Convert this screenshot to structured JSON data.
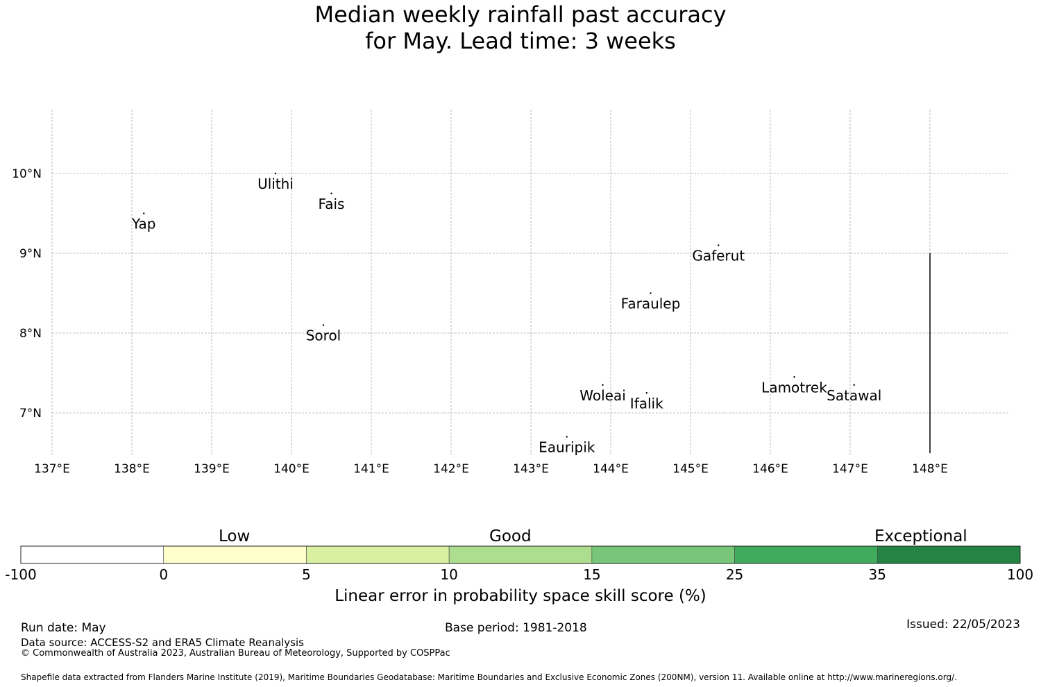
{
  "title": {
    "line1": "Median weekly rainfall past accuracy",
    "line2": "for May. Lead time: 3 weeks"
  },
  "map": {
    "lon_range": [
      137,
      149
    ],
    "lat_range": [
      6.5,
      10.8
    ],
    "lon_ticks": [
      137,
      138,
      139,
      140,
      141,
      142,
      143,
      144,
      145,
      146,
      147,
      148
    ],
    "lon_tick_labels": [
      "137°E",
      "138°E",
      "139°E",
      "140°E",
      "141°E",
      "142°E",
      "143°E",
      "144°E",
      "145°E",
      "146°E",
      "147°E",
      "148°E"
    ],
    "lat_ticks": [
      7,
      8,
      9,
      10
    ],
    "lat_tick_labels": [
      "7°N",
      "8°N",
      "9°N",
      "10°N"
    ],
    "grid": true,
    "boundary_line": {
      "lon": 148,
      "lat_from": 6.5,
      "lat_to": 9.0
    },
    "islands": [
      {
        "name": "Ulithi",
        "lon": 139.8,
        "lat": 10.0
      },
      {
        "name": "Fais",
        "lon": 140.5,
        "lat": 9.75
      },
      {
        "name": "Yap",
        "lon": 138.15,
        "lat": 9.5
      },
      {
        "name": "Gaferut",
        "lon": 145.35,
        "lat": 9.1
      },
      {
        "name": "Faraulep",
        "lon": 144.5,
        "lat": 8.5
      },
      {
        "name": "Sorol",
        "lon": 140.4,
        "lat": 8.1
      },
      {
        "name": "Woleai",
        "lon": 143.9,
        "lat": 7.35
      },
      {
        "name": "Ifalik",
        "lon": 144.45,
        "lat": 7.25
      },
      {
        "name": "Lamotrek",
        "lon": 146.3,
        "lat": 7.45
      },
      {
        "name": "Satawal",
        "lon": 147.05,
        "lat": 7.35
      },
      {
        "name": "Eauripik",
        "lon": 143.45,
        "lat": 6.7
      }
    ]
  },
  "colorbar": {
    "bins": [
      {
        "from": "-100",
        "to": "0",
        "color": "#ffffff"
      },
      {
        "from": "0",
        "to": "5",
        "color": "#ffffcc"
      },
      {
        "from": "5",
        "to": "10",
        "color": "#d9f0a3"
      },
      {
        "from": "10",
        "to": "15",
        "color": "#addd8e"
      },
      {
        "from": "15",
        "to": "25",
        "color": "#78c679"
      },
      {
        "from": "25",
        "to": "35",
        "color": "#41ab5d"
      },
      {
        "from": "35",
        "to": "100",
        "color": "#238443"
      }
    ],
    "ticks": [
      "-100",
      "0",
      "5",
      "10",
      "15",
      "25",
      "35",
      "100"
    ],
    "category_low": "Low",
    "category_good": "Good",
    "category_exceptional": "Exceptional",
    "title": "Linear error in probability space skill score (%)"
  },
  "footer": {
    "run_date": "Run date: May",
    "base_period": "Base period: 1981-2018",
    "issued": "Issued: 22/05/2023",
    "data_source": "Data source: ACCESS-S2 and ERA5 Climate Reanalysis",
    "copyright": "© Commonwealth of Australia 2023, Australian Bureau of Meteorology, Supported by COSPPac",
    "shapefile": "Shapefile data extracted from Flanders Marine Institute (2019), Maritime Boundaries Geodatabase: Maritime Boundaries and Exclusive Economic Zones (200NM), version 11. Available online at http://www.marineregions.org/."
  }
}
